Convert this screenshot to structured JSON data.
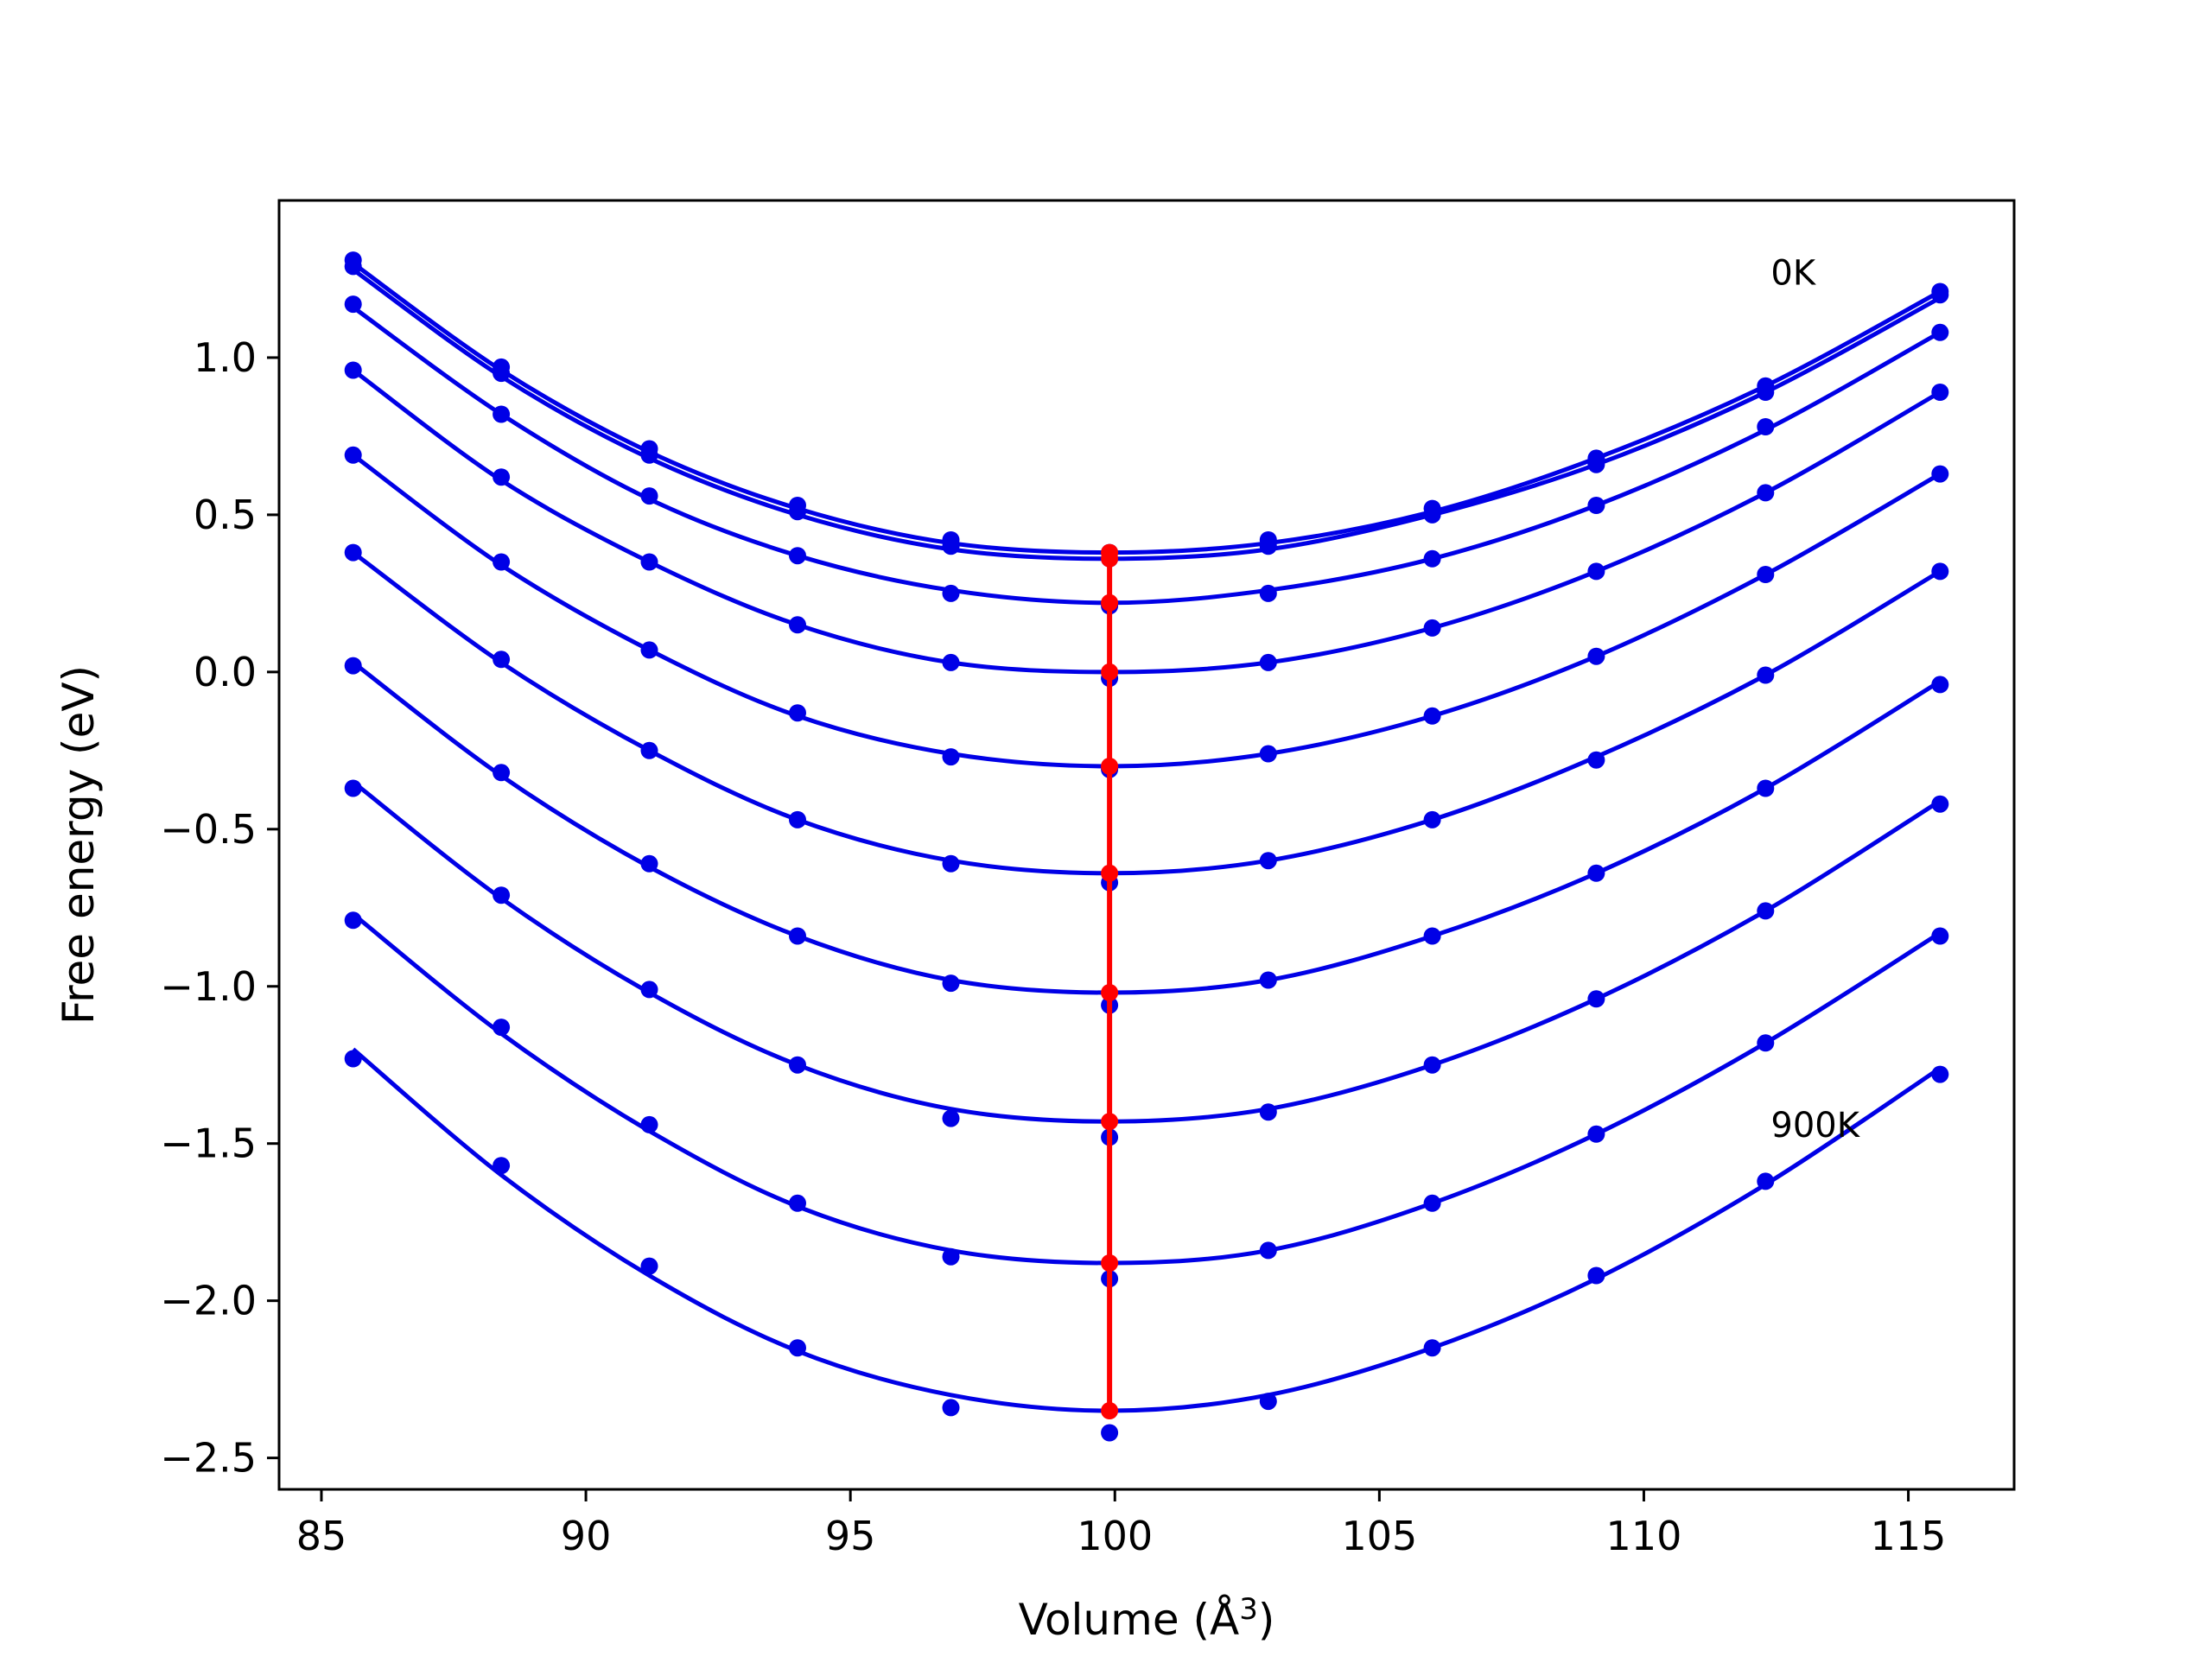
{
  "chart_data": {
    "type": "scatter",
    "title": "",
    "xlabel": "Volume (Å",
    "xlabel_sup": "3",
    "xlabel_close": ")",
    "ylabel": "Free energy (eV)",
    "xlim": [
      84.2,
      117.0
    ],
    "ylim": [
      -2.6,
      1.5
    ],
    "x_ticks": [
      85,
      90,
      95,
      100,
      105,
      110,
      115
    ],
    "x_tick_labels": [
      "85",
      "90",
      "95",
      "100",
      "105",
      "110",
      "115"
    ],
    "y_ticks": [
      -2.5,
      -2.0,
      -1.5,
      -1.0,
      -0.5,
      0.0,
      0.5,
      1.0
    ],
    "y_tick_labels": [
      "−2.5",
      "−2.0",
      "−1.5",
      "−1.0",
      "−0.5",
      "0.0",
      "0.5",
      "1.0"
    ],
    "annotations": [
      {
        "text": "0K",
        "x": 112.4,
        "y": 1.27
      },
      {
        "text": "900K",
        "x": 112.4,
        "y": -1.44
      }
    ],
    "colors": {
      "series": "#0000e6",
      "minima": "#ff0000"
    },
    "x": [
      85.6,
      88.4,
      91.2,
      94.0,
      96.9,
      99.9,
      102.9,
      106.0,
      109.1,
      112.3,
      115.6
    ],
    "series": [
      {
        "points": [
          1.31,
          0.97,
          0.71,
          0.53,
          0.42,
          0.38,
          0.42,
          0.52,
          0.68,
          0.91,
          1.21
        ],
        "fit": [
          1.3,
          0.96,
          0.7,
          0.52,
          0.41,
          0.38,
          0.41,
          0.51,
          0.68,
          0.91,
          1.21
        ],
        "min": {
          "x": 99.9,
          "y": 0.38
        }
      },
      {
        "points": [
          1.29,
          0.95,
          0.69,
          0.51,
          0.4,
          0.36,
          0.4,
          0.5,
          0.66,
          0.89,
          1.2
        ],
        "fit": [
          1.28,
          0.94,
          0.68,
          0.5,
          0.39,
          0.36,
          0.39,
          0.5,
          0.66,
          0.89,
          1.19
        ],
        "min": {
          "x": 99.9,
          "y": 0.36
        }
      },
      {
        "points": [
          1.17,
          0.82,
          0.56,
          0.37,
          0.25,
          0.21,
          0.25,
          0.36,
          0.53,
          0.78,
          1.08
        ],
        "fit": [
          1.16,
          0.82,
          0.55,
          0.37,
          0.26,
          0.22,
          0.26,
          0.36,
          0.53,
          0.77,
          1.08
        ],
        "min": {
          "x": 99.9,
          "y": 0.22
        }
      },
      {
        "points": [
          0.96,
          0.62,
          0.35,
          0.15,
          0.03,
          -0.02,
          0.03,
          0.14,
          0.32,
          0.57,
          0.89
        ],
        "fit": [
          0.96,
          0.61,
          0.35,
          0.15,
          0.03,
          0.0,
          0.03,
          0.14,
          0.32,
          0.57,
          0.89
        ],
        "min": {
          "x": 99.9,
          "y": 0.0
        }
      },
      {
        "points": [
          0.69,
          0.35,
          0.07,
          -0.13,
          -0.27,
          -0.31,
          -0.26,
          -0.14,
          0.05,
          0.31,
          0.63
        ],
        "fit": [
          0.69,
          0.34,
          0.07,
          -0.14,
          -0.26,
          -0.3,
          -0.26,
          -0.14,
          0.05,
          0.31,
          0.63
        ],
        "min": {
          "x": 99.9,
          "y": -0.3
        }
      },
      {
        "points": [
          0.38,
          0.04,
          -0.25,
          -0.47,
          -0.61,
          -0.67,
          -0.6,
          -0.47,
          -0.28,
          -0.01,
          0.32
        ],
        "fit": [
          0.38,
          0.03,
          -0.25,
          -0.47,
          -0.6,
          -0.64,
          -0.6,
          -0.47,
          -0.27,
          -0.01,
          0.32
        ],
        "min": {
          "x": 99.9,
          "y": -0.64
        }
      },
      {
        "points": [
          0.02,
          -0.32,
          -0.61,
          -0.84,
          -0.99,
          -1.06,
          -0.98,
          -0.84,
          -0.64,
          -0.37,
          -0.04
        ],
        "fit": [
          0.03,
          -0.33,
          -0.62,
          -0.84,
          -0.98,
          -1.02,
          -0.98,
          -0.84,
          -0.64,
          -0.37,
          -0.03
        ],
        "min": {
          "x": 99.9,
          "y": -1.02
        }
      },
      {
        "points": [
          -0.37,
          -0.71,
          -1.01,
          -1.25,
          -1.42,
          -1.48,
          -1.4,
          -1.25,
          -1.04,
          -0.76,
          -0.42
        ],
        "fit": [
          -0.35,
          -0.72,
          -1.02,
          -1.25,
          -1.39,
          -1.43,
          -1.39,
          -1.25,
          -1.04,
          -0.76,
          -0.41
        ],
        "min": {
          "x": 99.9,
          "y": -1.43
        }
      },
      {
        "points": [
          -0.79,
          -1.13,
          -1.44,
          -1.69,
          -1.86,
          -1.93,
          -1.84,
          -1.69,
          -1.47,
          -1.18,
          -0.84
        ],
        "fit": [
          -0.77,
          -1.15,
          -1.46,
          -1.7,
          -1.84,
          -1.88,
          -1.84,
          -1.69,
          -1.47,
          -1.18,
          -0.83
        ],
        "min": {
          "x": 99.9,
          "y": -1.88
        }
      },
      {
        "points": [
          -1.23,
          -1.57,
          -1.89,
          -2.15,
          -2.34,
          -2.42,
          -2.32,
          -2.15,
          -1.92,
          -1.62,
          -1.28
        ],
        "fit": [
          -1.2,
          -1.6,
          -1.92,
          -2.16,
          -2.3,
          -2.35,
          -2.3,
          -2.15,
          -1.93,
          -1.63,
          -1.26
        ],
        "min": {
          "x": 99.9,
          "y": -2.35
        }
      }
    ]
  }
}
